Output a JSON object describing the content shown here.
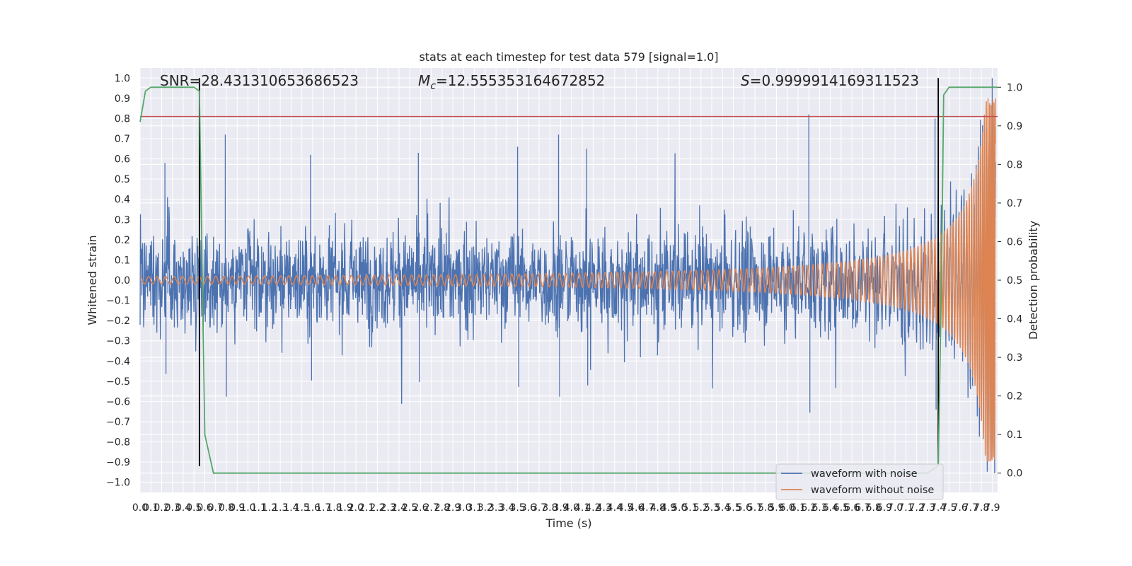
{
  "chart_data": {
    "type": "line",
    "title": "stats at each timestep for test data 579 [signal=1.0]",
    "xlabel": "Time (s)",
    "ylabel_left": "Whitened strain",
    "ylabel_right": "Detection probability",
    "xlim": [
      0.0,
      7.95
    ],
    "ylim_left": [
      -1.05,
      1.05
    ],
    "ylim_right": [
      -0.05,
      1.05
    ],
    "grid": true,
    "legend_placement": "lower-right",
    "x_ticks": [
      "0.0",
      "0.1",
      "0.2",
      "0.3",
      "0.4",
      "0.5",
      "0.6",
      "0.7",
      "0.8",
      "0.9",
      "1.0",
      "1.1",
      "1.2",
      "1.3",
      "1.4",
      "1.5",
      "1.6",
      "1.7",
      "1.8",
      "1.9",
      "2.0",
      "2.1",
      "2.2",
      "2.3",
      "2.4",
      "2.5",
      "2.6",
      "2.7",
      "2.8",
      "2.9",
      "3.0",
      "3.1",
      "3.2",
      "3.3",
      "3.4",
      "3.5",
      "3.6",
      "3.7",
      "3.8",
      "3.9",
      "4.0",
      "4.1",
      "4.2",
      "4.3",
      "4.4",
      "4.5",
      "4.6",
      "4.7",
      "4.8",
      "4.9",
      "5.0",
      "5.1",
      "5.2",
      "5.3",
      "5.4",
      "5.5",
      "5.6",
      "5.7",
      "5.8",
      "5.9",
      "6.0",
      "6.1",
      "6.2",
      "6.3",
      "6.4",
      "6.5",
      "6.6",
      "6.7",
      "6.8",
      "6.9",
      "7.0",
      "7.1",
      "7.2",
      "7.3",
      "7.4",
      "7.5",
      "7.6",
      "7.7",
      "7.8",
      "7.9"
    ],
    "y_ticks_left": [
      "−1.0",
      "−0.9",
      "−0.8",
      "−0.7",
      "−0.6",
      "−0.5",
      "−0.4",
      "−0.3",
      "−0.2",
      "−0.1",
      "0.0",
      "0.1",
      "0.2",
      "0.3",
      "0.4",
      "0.5",
      "0.6",
      "0.7",
      "0.8",
      "0.9",
      "1.0"
    ],
    "y_ticks_right": [
      "0.0",
      "0.1",
      "0.2",
      "0.3",
      "0.4",
      "0.5",
      "0.6",
      "0.7",
      "0.8",
      "0.9",
      "1.0"
    ],
    "annotations": {
      "snr_text": "SNR=28.431310653686523",
      "mc_symbol": "M",
      "mc_sub": "c",
      "mc_text": "=12.555353164672852",
      "s_symbol": "S",
      "s_text": "=0.9999914169311523"
    },
    "series": [
      {
        "name": "waveform with noise",
        "color": "#4c72b0",
        "axis": "left",
        "description_values": "dense noisy strain, typical amplitude ±0.4, peaks to ±0.7, chirp grows near 7.9 s up to ~1.0",
        "peaks": [
          [
            0.23,
            0.58
          ],
          [
            0.79,
            0.72
          ],
          [
            1.58,
            0.62
          ],
          [
            2.58,
            0.63
          ],
          [
            3.5,
            0.66
          ],
          [
            3.88,
            0.72
          ],
          [
            4.14,
            0.65
          ],
          [
            6.2,
            0.82
          ],
          [
            7.37,
            0.8
          ],
          [
            7.9,
            1.0
          ]
        ]
      },
      {
        "name": "waveform without noise",
        "color": "#dd8452",
        "axis": "left",
        "description_values": "clean chirp, amplitude ~0.02 at 0 s rising to ~0.85 at 7.9 s"
      },
      {
        "name": "",
        "color": "#55a868",
        "axis": "right",
        "x": [
          0.0,
          0.05,
          0.1,
          0.5,
          0.55,
          0.6,
          0.68,
          1.5,
          7.3,
          7.4,
          7.43,
          7.45,
          7.5,
          7.55,
          7.95
        ],
        "y": [
          0.91,
          0.99,
          1.0,
          1.0,
          0.99,
          0.1,
          0.0,
          0.0,
          0.0,
          0.02,
          0.5,
          0.98,
          1.0,
          1.0,
          1.0
        ]
      }
    ],
    "reference_lines": {
      "horizontal_left": {
        "color": "#c44e52",
        "value": 0.81
      },
      "vertical": [
        0.55,
        7.4
      ]
    }
  }
}
